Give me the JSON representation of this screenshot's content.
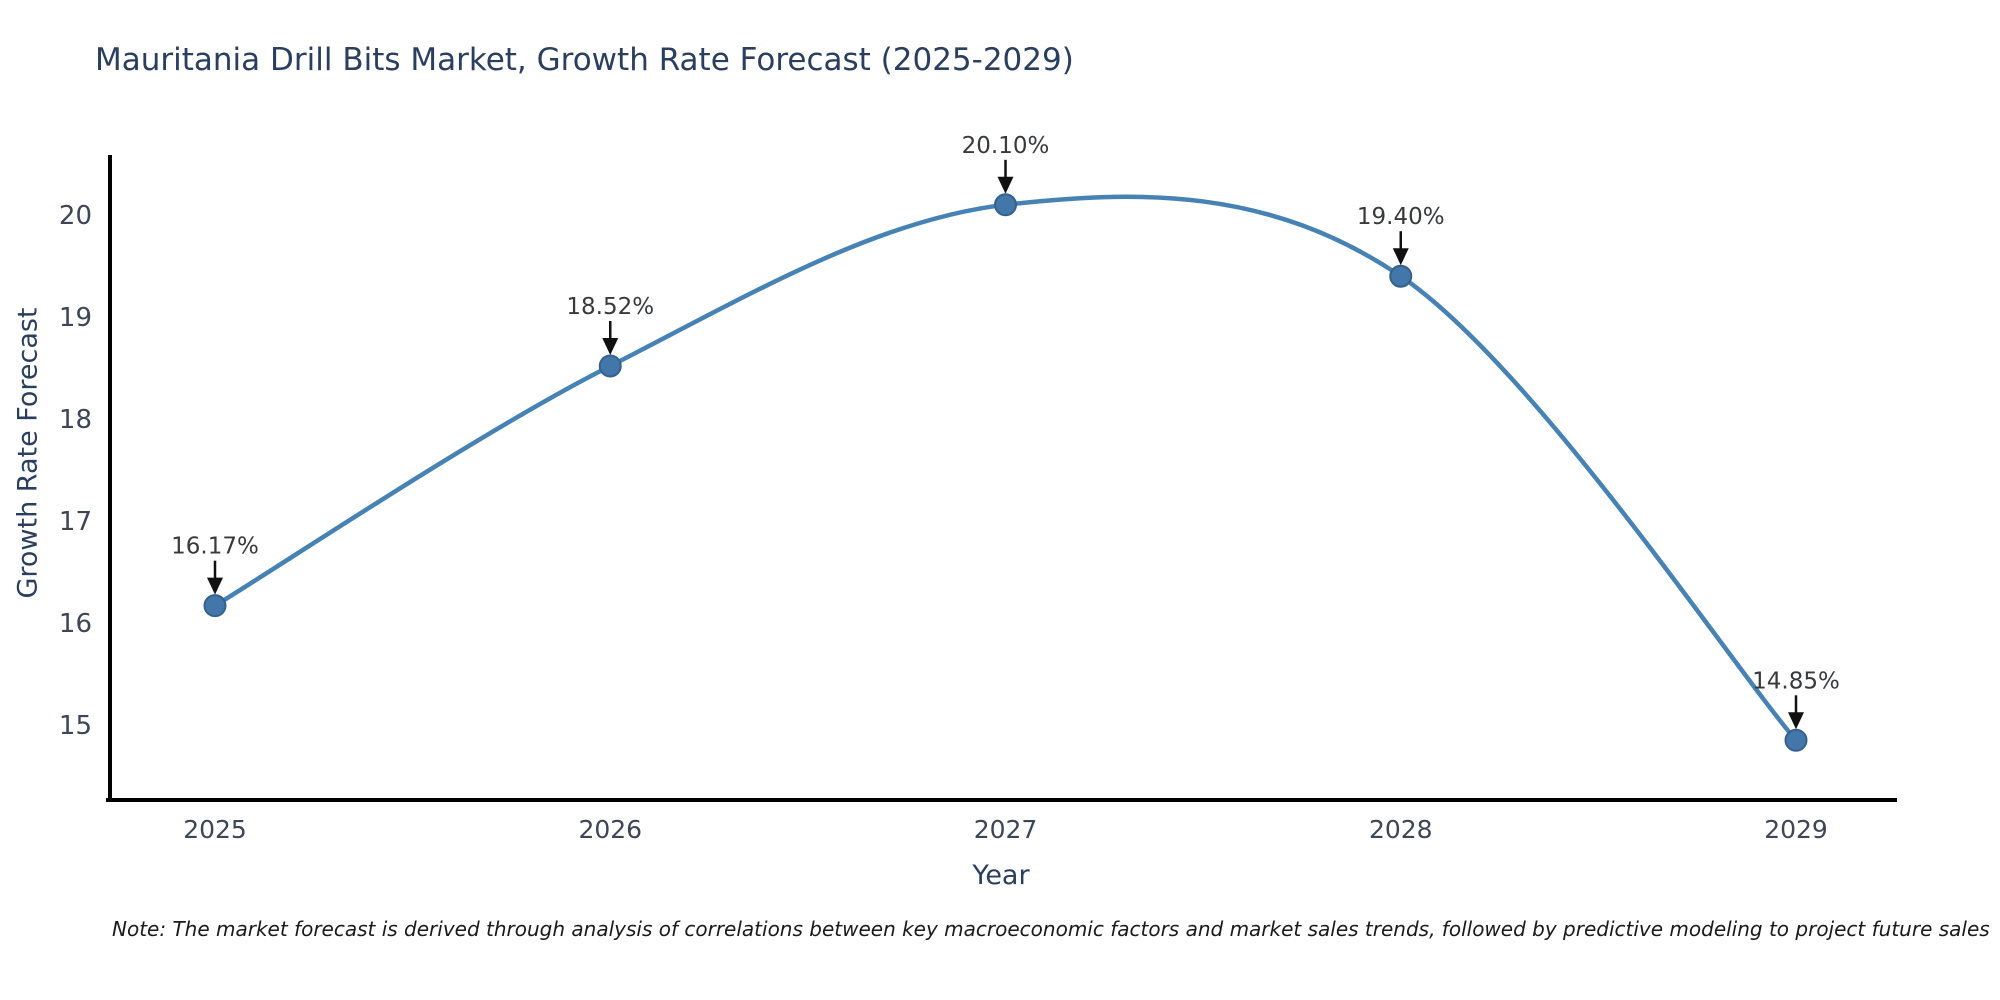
{
  "title": "Mauritania Drill Bits Market, Growth Rate Forecast (2025-2029)",
  "note": "Note: The market forecast is derived through analysis of correlations between key macroeconomic factors and market sales trends, followed by predictive modeling to project future sales",
  "chart_data": {
    "type": "line",
    "title": "Mauritania Drill Bits Market, Growth Rate Forecast (2025-2029)",
    "xlabel": "Year",
    "ylabel": "Growth Rate Forecast",
    "x": [
      "2025",
      "2026",
      "2027",
      "2028",
      "2029"
    ],
    "series": [
      {
        "name": "Growth Rate Forecast",
        "values": [
          16.17,
          18.52,
          20.1,
          19.4,
          14.85
        ],
        "point_labels": [
          "16.17%",
          "18.52%",
          "20.10%",
          "19.40%",
          "14.85%"
        ]
      }
    ],
    "yticks": [
      15,
      16,
      17,
      18,
      19,
      20
    ],
    "ylim": [
      14.26,
      20.59
    ],
    "line_shape": "spline",
    "grid": false,
    "legend": "none",
    "colors": {
      "line": "#4682b4",
      "marker_fill": "#4377a9",
      "marker_edge": "#35618d",
      "axis": "#000000",
      "tick_text": "#3c4656",
      "annotation_text": "#38393b",
      "arrow": "#111111"
    }
  }
}
